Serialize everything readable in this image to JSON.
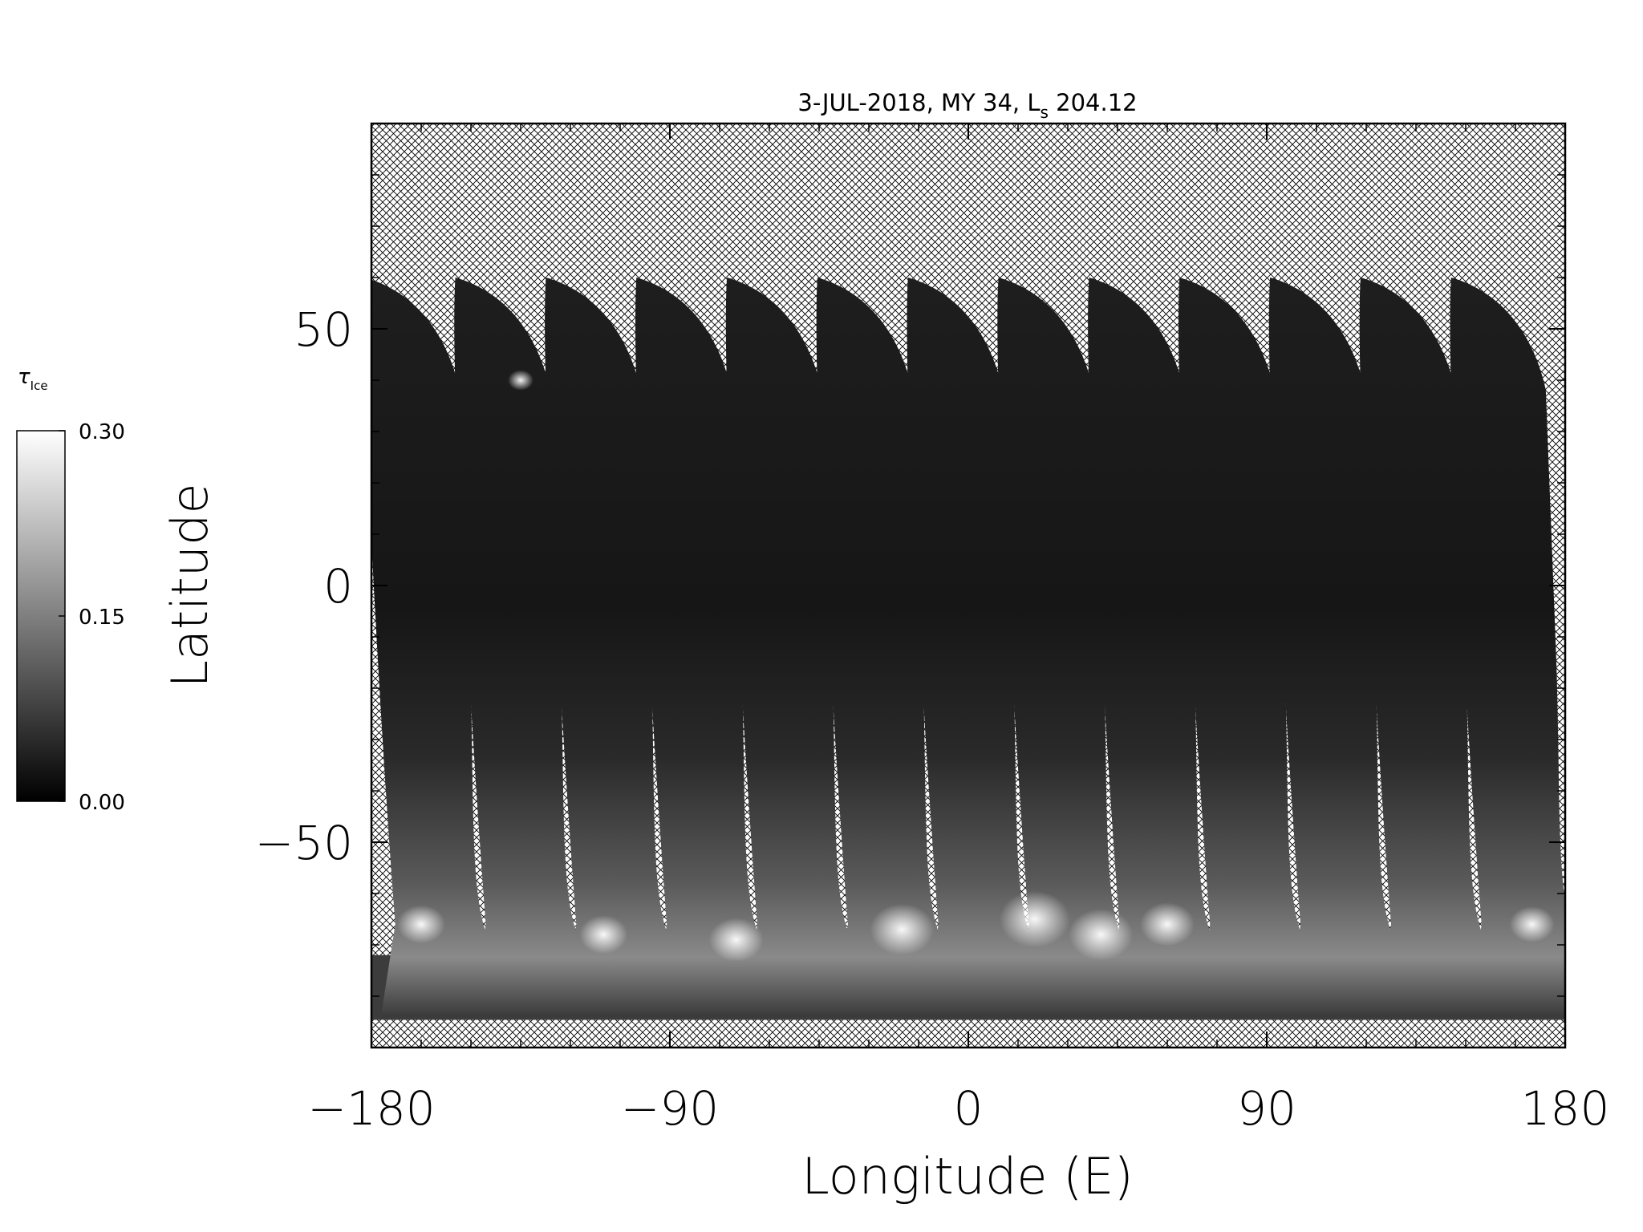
{
  "chart_data": {
    "type": "heatmap",
    "title": {
      "prefix": "3-JUL-2018, MY 34,  ",
      "ls_symbol": "L",
      "ls_subscript": "s",
      "ls_value": " 204.12"
    },
    "xlabel": "Longitude (E)",
    "ylabel": "Latitude",
    "xlim": [
      -180,
      180
    ],
    "ylim": [
      -90,
      90
    ],
    "x_ticks": [
      -180,
      -90,
      0,
      90,
      180
    ],
    "y_ticks": [
      -50,
      0,
      50
    ],
    "x_tick_labels": [
      "−180",
      "−90",
      "0",
      "90",
      "180"
    ],
    "y_tick_labels": [
      "−50",
      "0",
      "50"
    ],
    "colorbar": {
      "label_symbol": "τ",
      "label_subscript": "Ice",
      "range": [
        0.0,
        0.3
      ],
      "ticks": [
        0.3,
        0.15,
        0.0
      ],
      "tick_labels": [
        "0.30",
        "0.15",
        "0.00"
      ],
      "colormap": "grayscale",
      "low_color": "#000000",
      "high_color": "#ffffff"
    },
    "missing_data_pattern": "crosshatch",
    "grid": false,
    "orbit_swaths": {
      "count": 13,
      "north_limit_lat": 60,
      "south_limit_lat": -84,
      "start_lon": -182,
      "spacing_deg": 27.3
    }
  },
  "colors": {
    "background": "#ffffff",
    "hatch": "#000000",
    "axis": "#000000"
  }
}
